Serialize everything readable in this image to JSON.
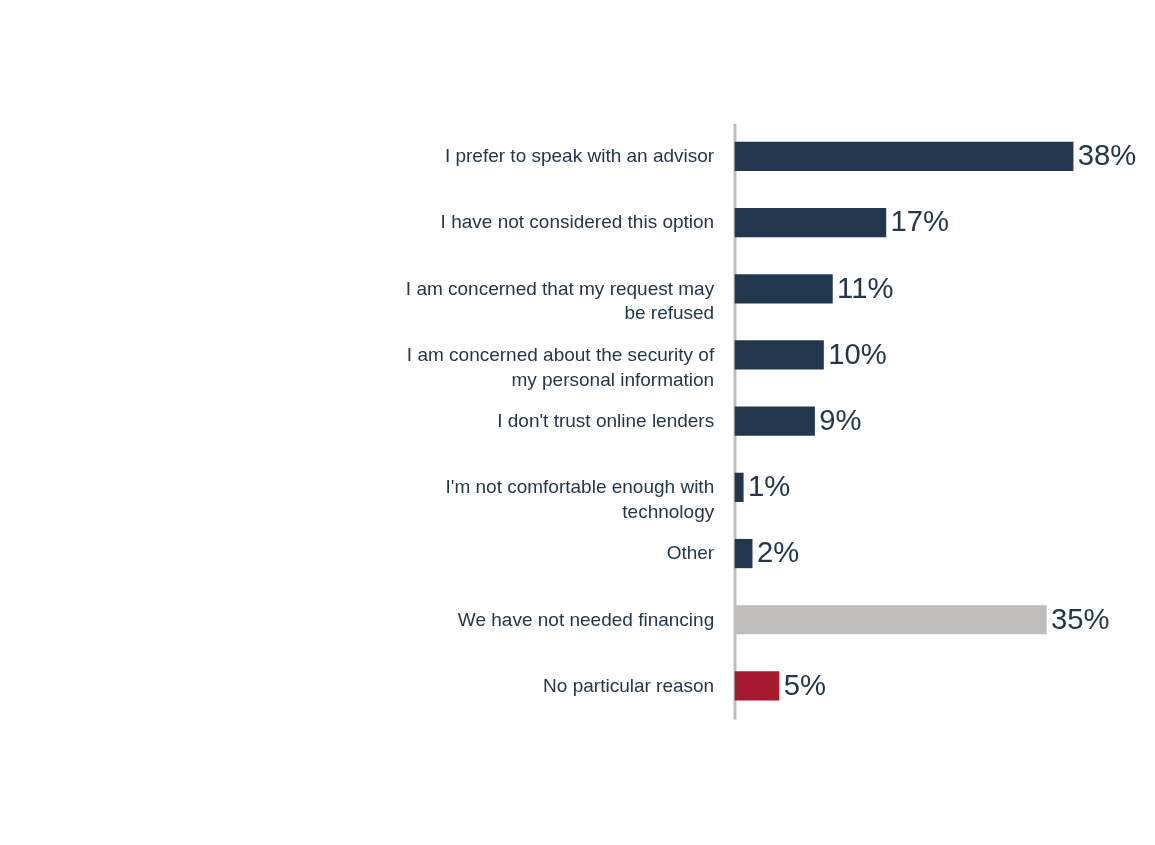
{
  "chart_data": {
    "type": "bar",
    "orientation": "horizontal",
    "categories": [
      "I prefer to speak with an advisor",
      "I have not considered this option",
      "I am concerned that my request may be refused",
      "I am concerned about the security of my personal information",
      "I don't trust online lenders",
      "I'm not comfortable enough with technology",
      "Other",
      "We have not needed financing",
      "No particular reason"
    ],
    "values": [
      38,
      17,
      11,
      10,
      9,
      1,
      2,
      35,
      5
    ],
    "value_labels": [
      "38%",
      "17%",
      "11%",
      "10%",
      "9%",
      "1%",
      "2%",
      "35%",
      "5%"
    ],
    "colors": [
      "#22374d",
      "#22374d",
      "#22374d",
      "#22374d",
      "#22374d",
      "#22374d",
      "#22374d",
      "#bfbdbb",
      "#a6192e"
    ],
    "grid": false
  }
}
